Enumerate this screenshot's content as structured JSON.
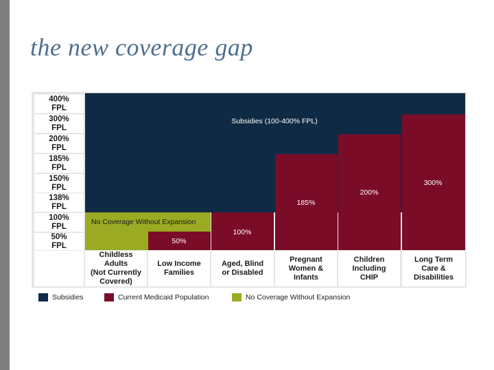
{
  "slide": {
    "title": "the new coverage gap"
  },
  "colors": {
    "subsidies": "#0f2a44",
    "medicaid": "#7a0c28",
    "gap": "#9aaa22",
    "frame": "#e6e6e6",
    "title": "#4f6f8f"
  },
  "chart_data": {
    "type": "bar",
    "title": "",
    "y_levels": [
      "50% FPL",
      "100% FPL",
      "138% FPL",
      "150% FPL",
      "185% FPL",
      "200% FPL",
      "300% FPL",
      "400% FPL"
    ],
    "y_level_values": [
      50,
      100,
      138,
      150,
      185,
      200,
      300,
      400
    ],
    "categories": [
      "Childless Adults (Not Currently Covered)",
      "Low Income Families",
      "Aged, Blind or Disabled",
      "Pregnant Women & Infants",
      "Children Including CHIP",
      "Long Term Care & Disabilities"
    ],
    "series": [
      {
        "name": "Current Medicaid Population",
        "values": [
          0,
          50,
          100,
          185,
          200,
          300
        ],
        "labels": [
          "",
          "50%",
          "100%",
          "185%",
          "200%",
          "300%"
        ]
      },
      {
        "name": "No Coverage Without Expansion",
        "range": [
          0,
          100
        ],
        "categories": [
          "Childless Adults (Not Currently Covered)",
          "Low Income Families"
        ],
        "label": "No Coverage Without Expansion"
      },
      {
        "name": "Subsidies",
        "range": [
          100,
          400
        ],
        "label": "Subsidies (100-400% FPL)"
      }
    ],
    "legend": [
      "Subsidies",
      "Current Medicaid Population",
      "No Coverage Without Expansion"
    ],
    "legend_position": "bottom"
  },
  "display": {
    "fpl_labels": [
      "400%\nFPL",
      "300%\nFPL",
      "200%\nFPL",
      "185%\nFPL",
      "150%\nFPL",
      "138%\nFPL",
      "100%\nFPL",
      "50%\nFPL"
    ],
    "category_labels": [
      "Childless\nAdults\n(Not Currently\nCovered)",
      "Low Income\nFamilies",
      "Aged, Blind\nor Disabled",
      "Pregnant\nWomen &\nInfants",
      "Children\nIncluding\nCHIP",
      "Long Term\nCare &\nDisabilities"
    ]
  }
}
